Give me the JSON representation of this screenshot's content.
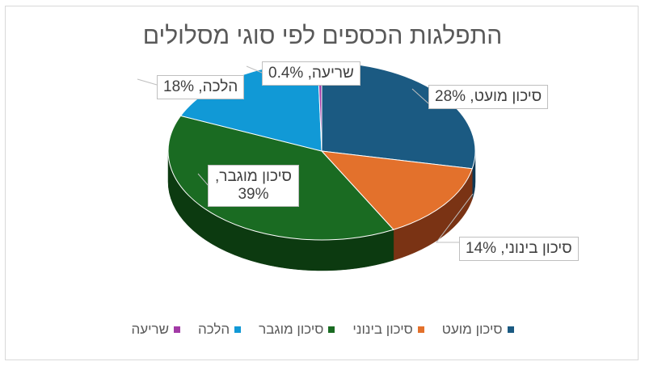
{
  "chart_data": {
    "type": "pie",
    "title": "התפלגות הכספים לפי סוגי מסלולים",
    "slices": [
      {
        "name": "סיכון מועט",
        "value": 28,
        "color": "#1b5a82",
        "side": "#0f3854",
        "label": "סיכון מועט, 28%"
      },
      {
        "name": "סיכון בינוני",
        "value": 14,
        "color": "#e3712c",
        "side": "#7a3314",
        "label": "סיכון בינוני, 14%"
      },
      {
        "name": "סיכון מוגבר",
        "value": 39,
        "color": "#1a6b22",
        "side": "#0c3a10",
        "label": "סיכון מוגבר, 39%"
      },
      {
        "name": "הלכה",
        "value": 18,
        "color": "#1199d6",
        "side": "#0a6a96",
        "label": "הלכה, 18%"
      },
      {
        "name": "שריעה",
        "value": 0.4,
        "color": "#a23aa6",
        "side": "#6b2370",
        "label": "שריעה, 0.4%"
      }
    ],
    "legend_position": "bottom"
  }
}
